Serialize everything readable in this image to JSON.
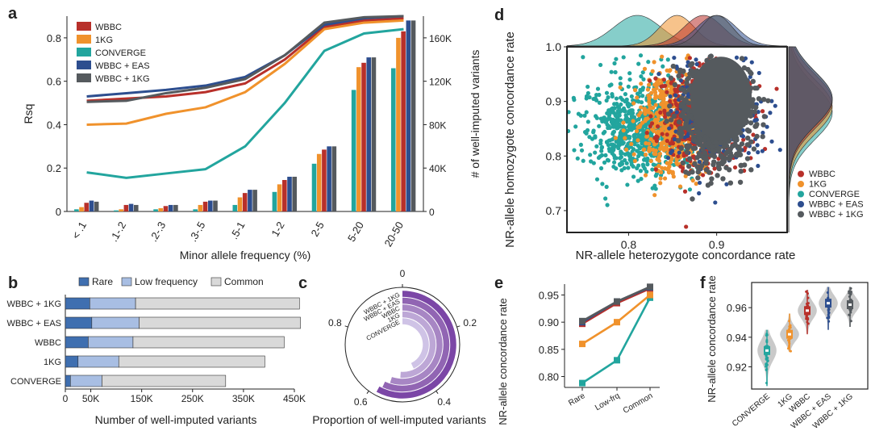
{
  "colors": {
    "WBBC": "#b8302a",
    "1KG": "#f0922c",
    "CONVERGE": "#22a59e",
    "WBBC + EAS": "#2d4e8f",
    "WBBC + 1KG": "#555a5e",
    "rare": "#3f6fb0",
    "low": "#a8bee3",
    "common": "#d9d9d9"
  },
  "panels": {
    "a": "a",
    "b": "b",
    "c": "c",
    "d": "d",
    "e": "e",
    "f": "f"
  },
  "chart_data": [
    {
      "panel": "a",
      "type": "line+bar",
      "xlabel": "Minor allele frequency (%)",
      "ylabel": "Rsq",
      "y2label": "# of well-imputed variants",
      "categories": [
        "< .1",
        ".1-.2",
        ".2-.3",
        ".3-.5",
        ".5-1",
        "1-2",
        "2-5",
        "5-20",
        "20-50"
      ],
      "ylim": [
        0,
        0.9
      ],
      "yticks": [
        "0",
        "0.2",
        "0.4",
        "0.6",
        "0.8"
      ],
      "y2lim": [
        0,
        180000
      ],
      "y2ticks": [
        "0",
        "40K",
        "80K",
        "120K",
        "160K"
      ],
      "legend": [
        "WBBC",
        "1KG",
        "CONVERGE",
        "WBBC + EAS",
        "WBBC + 1KG"
      ],
      "line_series": [
        {
          "name": "WBBC",
          "values": [
            0.51,
            0.52,
            0.53,
            0.55,
            0.59,
            0.7,
            0.85,
            0.88,
            0.89
          ]
        },
        {
          "name": "1KG",
          "values": [
            0.4,
            0.405,
            0.45,
            0.48,
            0.55,
            0.68,
            0.84,
            0.87,
            0.88
          ]
        },
        {
          "name": "CONVERGE",
          "values": [
            0.18,
            0.155,
            0.175,
            0.195,
            0.3,
            0.5,
            0.74,
            0.82,
            0.84
          ]
        },
        {
          "name": "WBBC + EAS",
          "values": [
            0.53,
            0.545,
            0.56,
            0.58,
            0.62,
            0.72,
            0.86,
            0.89,
            0.9
          ]
        },
        {
          "name": "WBBC + 1KG",
          "values": [
            0.505,
            0.51,
            0.545,
            0.57,
            0.61,
            0.72,
            0.87,
            0.895,
            0.9
          ]
        }
      ],
      "bar_series": [
        {
          "name": "CONVERGE",
          "values": [
            2000,
            1000,
            2000,
            2000,
            6000,
            18000,
            44000,
            112000,
            132000
          ]
        },
        {
          "name": "1KG",
          "values": [
            4000,
            2000,
            3000,
            6000,
            13000,
            25000,
            53000,
            133000,
            160000
          ]
        },
        {
          "name": "WBBC",
          "values": [
            8000,
            6000,
            5000,
            9000,
            17000,
            29000,
            57000,
            137000,
            166000
          ]
        },
        {
          "name": "WBBC + EAS",
          "values": [
            10000,
            7000,
            6000,
            10000,
            20000,
            32000,
            60000,
            142000,
            176000
          ]
        },
        {
          "name": "WBBC + 1KG",
          "values": [
            9000,
            6000,
            6000,
            10000,
            20000,
            32000,
            60000,
            142000,
            176000
          ]
        }
      ]
    },
    {
      "panel": "b",
      "type": "bar",
      "orientation": "horizontal-stacked",
      "xlabel": "Number of well-imputed variants",
      "categories": [
        "WBBC + 1KG",
        "WBBC + EAS",
        "WBBC",
        "1KG",
        "CONVERGE"
      ],
      "xlim": [
        0,
        450000
      ],
      "xticks": [
        "0",
        "50K",
        "150K",
        "250K",
        "350K",
        "450K"
      ],
      "legend": [
        "Rare",
        "Low frequency",
        "Common"
      ],
      "series": [
        {
          "name": "Rare",
          "values": [
            48000,
            52000,
            45000,
            25000,
            10000
          ]
        },
        {
          "name": "Low frequency",
          "values": [
            90000,
            93000,
            88000,
            80000,
            62000
          ]
        },
        {
          "name": "Common",
          "values": [
            322000,
            317000,
            297000,
            287000,
            243000
          ]
        }
      ]
    },
    {
      "panel": "c",
      "type": "bar",
      "orientation": "radial",
      "xlabel": "Proportion of well-imputed variants",
      "categories": [
        "WBBC + 1KG",
        "WBBC + EAS",
        "WBBC",
        "1KG",
        "CONVERGE"
      ],
      "values": [
        0.58,
        0.57,
        0.55,
        0.51,
        0.43
      ],
      "ticks": [
        "0",
        "0.2",
        "0.4",
        "0.6",
        "0.8"
      ],
      "colors": [
        "#7b46a6",
        "#9165b3",
        "#a786c4",
        "#bda7d6",
        "#cfc3e6"
      ]
    },
    {
      "panel": "d",
      "type": "scatter",
      "xlabel": "NR-allele heterozygote concordance rate",
      "ylabel": "NR-allele homozygote concordance rate",
      "xlim": [
        0.73,
        0.98
      ],
      "ylim": [
        0.66,
        1.0
      ],
      "xticks": [
        "0.8",
        "0.9"
      ],
      "yticks": [
        "0.7",
        "0.8",
        "0.9",
        "1.0"
      ],
      "legend": [
        "WBBC",
        "1KG",
        "CONVERGE",
        "WBBC + EAS",
        "WBBC + 1KG"
      ],
      "clusters": [
        {
          "name": "CONVERGE",
          "center": [
            0.81,
            0.85
          ],
          "spread": [
            0.03,
            0.045
          ]
        },
        {
          "name": "1KG",
          "center": [
            0.855,
            0.86
          ],
          "spread": [
            0.022,
            0.045
          ]
        },
        {
          "name": "WBBC",
          "center": [
            0.885,
            0.87
          ],
          "spread": [
            0.025,
            0.045
          ]
        },
        {
          "name": "WBBC + EAS",
          "center": [
            0.9,
            0.875
          ],
          "spread": [
            0.025,
            0.045
          ]
        },
        {
          "name": "WBBC + 1KG",
          "center": [
            0.9,
            0.875
          ],
          "spread": [
            0.02,
            0.045
          ]
        }
      ]
    },
    {
      "panel": "e",
      "type": "line",
      "ylabel": "NR-allele concordance rate",
      "categories": [
        "Rare",
        "Low-frq",
        "Common"
      ],
      "ylim": [
        0.78,
        0.97
      ],
      "yticks": [
        "0.80",
        "0.85",
        "0.90",
        "0.95"
      ],
      "series": [
        {
          "name": "CONVERGE",
          "values": [
            0.788,
            0.83,
            0.945
          ]
        },
        {
          "name": "1KG",
          "values": [
            0.86,
            0.9,
            0.95
          ]
        },
        {
          "name": "WBBC",
          "values": [
            0.897,
            0.935,
            0.962
          ]
        },
        {
          "name": "WBBC + EAS",
          "values": [
            0.9,
            0.938,
            0.964
          ]
        },
        {
          "name": "WBBC + 1KG",
          "values": [
            0.902,
            0.938,
            0.965
          ]
        }
      ]
    },
    {
      "panel": "f",
      "type": "violin",
      "ylabel": "NR-allele concordance rate",
      "categories": [
        "CONVERGE",
        "1KG",
        "WBBC",
        "WBBC + EAS",
        "WBBC + 1KG"
      ],
      "ylim": [
        0.905,
        0.977
      ],
      "yticks": [
        "0.92",
        "0.94",
        "0.96"
      ],
      "medians": [
        0.931,
        0.942,
        0.958,
        0.963,
        0.962
      ],
      "ranges": [
        [
          0.907,
          0.945
        ],
        [
          0.93,
          0.956
        ],
        [
          0.942,
          0.972
        ],
        [
          0.945,
          0.974
        ],
        [
          0.947,
          0.974
        ]
      ]
    }
  ]
}
